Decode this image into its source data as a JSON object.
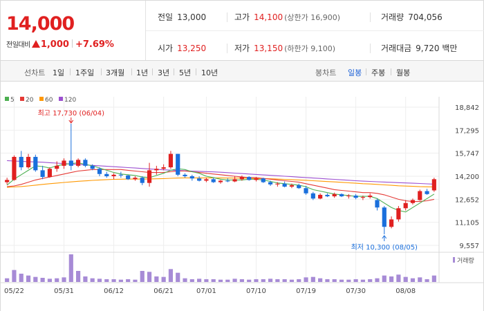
{
  "quote": {
    "price": "14,000",
    "change_label": "전일대비",
    "change_value": "1,000",
    "change_pct": "+7.69%",
    "prev_close_label": "전일",
    "prev_close": "13,000",
    "high_label": "고가",
    "high": "14,100",
    "upper_limit_label": "(상한가 16,900)",
    "volume_label": "거래량",
    "volume": "704,056",
    "open_label": "시가",
    "open": "13,250",
    "low_label": "저가",
    "low": "13,150",
    "lower_limit_label": "(하한가 9,100)",
    "turnover_label": "거래대금",
    "turnover": "9,720 백만"
  },
  "toolbar": {
    "line_chart_label": "선차트",
    "line_periods": [
      "1일",
      "1주일",
      "3개월",
      "1년",
      "3년",
      "5년",
      "10년"
    ],
    "candle_chart_label": "봉차트",
    "candle_periods": [
      "일봉",
      "주봉",
      "월봉"
    ],
    "active_candle": "일봉"
  },
  "colors": {
    "up": "#e02020",
    "down": "#1a6fdc",
    "ma5": "#4caf50",
    "ma20": "#e53935",
    "ma60": "#ff9800",
    "ma120": "#9c4fd0",
    "volume": "#a78bd6"
  },
  "chart_data": {
    "type": "candlestick",
    "legend": [
      "5",
      "20",
      "60",
      "120"
    ],
    "volume_legend": "거래량",
    "y_ticks": [
      "18,842",
      "17,295",
      "15,747",
      "14,200",
      "12,652",
      "11,105",
      "9,557"
    ],
    "ylim": [
      9557,
      18842
    ],
    "x_labels": [
      {
        "label": "05/22",
        "index": 1
      },
      {
        "label": "05/31",
        "index": 8
      },
      {
        "label": "06/12",
        "index": 15
      },
      {
        "label": "06/21",
        "index": 22
      },
      {
        "label": "07/01",
        "index": 28
      },
      {
        "label": "07/10",
        "index": 35
      },
      {
        "label": "07/19",
        "index": 42
      },
      {
        "label": "07/30",
        "index": 49
      },
      {
        "label": "08/08",
        "index": 56
      }
    ],
    "annotations": {
      "high_text": "최고 17,730 (06/04)",
      "high_value": 17730,
      "high_index": 9,
      "low_text": "최저 10,300 (08/05)",
      "low_value": 10300,
      "low_index": 53
    },
    "candles": [
      [
        13800,
        14100,
        13650,
        13950,
        40
      ],
      [
        13950,
        15600,
        13900,
        15500,
        130
      ],
      [
        15500,
        15900,
        14600,
        14800,
        90
      ],
      [
        14800,
        15700,
        14700,
        15500,
        70
      ],
      [
        15500,
        15650,
        14500,
        14600,
        55
      ],
      [
        14600,
        14900,
        14000,
        14150,
        45
      ],
      [
        14150,
        14800,
        14100,
        14700,
        35
      ],
      [
        14700,
        15200,
        14500,
        14900,
        40
      ],
      [
        14900,
        15400,
        14700,
        15250,
        50
      ],
      [
        15250,
        17730,
        14600,
        14900,
        300
      ],
      [
        14900,
        15400,
        14800,
        15300,
        120
      ],
      [
        15300,
        15400,
        14800,
        14900,
        60
      ],
      [
        14900,
        15000,
        14600,
        14700,
        40
      ],
      [
        14700,
        14800,
        14200,
        14350,
        35
      ],
      [
        14350,
        14500,
        14100,
        14200,
        30
      ],
      [
        14200,
        14400,
        14000,
        14300,
        30
      ],
      [
        14300,
        14500,
        14100,
        14250,
        25
      ],
      [
        14250,
        14300,
        13950,
        14000,
        30
      ],
      [
        14000,
        14200,
        13900,
        14100,
        25
      ],
      [
        14100,
        14200,
        13600,
        13750,
        120
      ],
      [
        13750,
        15100,
        13500,
        14600,
        110
      ],
      [
        14600,
        14900,
        14300,
        14700,
        60
      ],
      [
        14700,
        15000,
        14600,
        14800,
        55
      ],
      [
        14800,
        15900,
        14700,
        15700,
        140
      ],
      [
        15700,
        15700,
        14200,
        14300,
        100
      ],
      [
        14300,
        14400,
        14100,
        14200,
        40
      ],
      [
        14200,
        14300,
        13900,
        14050,
        30
      ],
      [
        14050,
        14200,
        13850,
        13900,
        35
      ],
      [
        13900,
        14100,
        13800,
        14000,
        30
      ],
      [
        14000,
        14100,
        13750,
        13800,
        30
      ],
      [
        13800,
        13950,
        13700,
        13900,
        25
      ],
      [
        13900,
        14050,
        13800,
        13850,
        25
      ],
      [
        13850,
        14200,
        13800,
        14000,
        35
      ],
      [
        14000,
        14250,
        13900,
        14150,
        30
      ],
      [
        14150,
        14200,
        13900,
        13950,
        25
      ],
      [
        13950,
        14150,
        13850,
        14050,
        30
      ],
      [
        14050,
        14100,
        13750,
        13800,
        30
      ],
      [
        13800,
        13900,
        13550,
        13650,
        35
      ],
      [
        13650,
        13800,
        13500,
        13700,
        30
      ],
      [
        13700,
        13850,
        13450,
        13500,
        30
      ],
      [
        13500,
        13700,
        13400,
        13600,
        25
      ],
      [
        13600,
        13700,
        13350,
        13400,
        30
      ],
      [
        13400,
        13550,
        12950,
        13050,
        50
      ],
      [
        13050,
        13150,
        12600,
        12700,
        55
      ],
      [
        12700,
        13050,
        12650,
        12950,
        40
      ],
      [
        12950,
        13050,
        12800,
        12850,
        30
      ],
      [
        12850,
        13100,
        12750,
        13000,
        30
      ],
      [
        13000,
        13050,
        12800,
        12850,
        25
      ],
      [
        12850,
        13000,
        12700,
        12900,
        25
      ],
      [
        12900,
        13000,
        12650,
        12750,
        30
      ],
      [
        12750,
        12900,
        12600,
        12800,
        25
      ],
      [
        12800,
        13050,
        12700,
        12900,
        30
      ],
      [
        12600,
        12700,
        11900,
        12100,
        40
      ],
      [
        12100,
        12200,
        10300,
        10800,
        70
      ],
      [
        10800,
        11500,
        10700,
        11300,
        60
      ],
      [
        11300,
        12200,
        11150,
        12050,
        80
      ],
      [
        12050,
        12600,
        11900,
        12400,
        55
      ],
      [
        12400,
        12700,
        12300,
        12600,
        40
      ],
      [
        12600,
        13300,
        12550,
        13200,
        50
      ],
      [
        13200,
        13350,
        12950,
        13000,
        30
      ],
      [
        13250,
        14100,
        13150,
        14000,
        70
      ]
    ],
    "ma5": [
      13600,
      14000,
      14300,
      14600,
      14900,
      14850,
      14750,
      14900,
      15000,
      15050,
      15100,
      15000,
      14900,
      14750,
      14600,
      14450,
      14350,
      14300,
      14250,
      14150,
      14100,
      14250,
      14400,
      14600,
      14700,
      14650,
      14500,
      14400,
      14200,
      14100,
      14000,
      13950,
      13950,
      13950,
      14000,
      14000,
      13950,
      13850,
      13750,
      13700,
      13650,
      13600,
      13500,
      13300,
      13200,
      13100,
      13000,
      12950,
      12900,
      12850,
      12850,
      12850,
      12700,
      12400,
      12100,
      11900,
      11800,
      12100,
      12400,
      12700,
      13000
    ],
    "ma20": [
      13500,
      13550,
      13650,
      13800,
      13950,
      14050,
      14150,
      14250,
      14350,
      14450,
      14550,
      14600,
      14650,
      14650,
      14650,
      14650,
      14650,
      14600,
      14550,
      14500,
      14450,
      14450,
      14450,
      14500,
      14550,
      14550,
      14500,
      14450,
      14400,
      14350,
      14300,
      14250,
      14200,
      14150,
      14100,
      14100,
      14050,
      14000,
      13950,
      13900,
      13850,
      13800,
      13700,
      13600,
      13500,
      13400,
      13300,
      13250,
      13200,
      13150,
      13100,
      13100,
      13050,
      12950,
      12800,
      12650,
      12550,
      12500,
      12500,
      12550,
      12650
    ],
    "ma60": [
      13450,
      13480,
      13510,
      13550,
      13600,
      13650,
      13700,
      13740,
      13780,
      13820,
      13860,
      13890,
      13920,
      13950,
      13970,
      13990,
      14000,
      14010,
      14010,
      14010,
      14020,
      14030,
      14040,
      14060,
      14080,
      14090,
      14090,
      14090,
      14090,
      14090,
      14090,
      14080,
      14080,
      14070,
      14060,
      14050,
      14040,
      14030,
      14010,
      13990,
      13970,
      13950,
      13930,
      13900,
      13870,
      13840,
      13820,
      13790,
      13760,
      13730,
      13700,
      13680,
      13650,
      13620,
      13590,
      13560,
      13540,
      13520,
      13500,
      13490,
      13480
    ],
    "ma120": [
      15250,
      15220,
      15200,
      15180,
      15160,
      15140,
      15110,
      15080,
      15050,
      15020,
      14990,
      14960,
      14930,
      14900,
      14870,
      14840,
      14810,
      14780,
      14750,
      14720,
      14690,
      14660,
      14630,
      14610,
      14590,
      14570,
      14550,
      14530,
      14510,
      14490,
      14470,
      14440,
      14410,
      14380,
      14350,
      14320,
      14290,
      14260,
      14230,
      14200,
      14170,
      14140,
      14110,
      14080,
      14050,
      14020,
      13990,
      13960,
      13930,
      13900,
      13870,
      13850,
      13830,
      13810,
      13790,
      13770,
      13750,
      13730,
      13710,
      13690,
      13670
    ]
  }
}
